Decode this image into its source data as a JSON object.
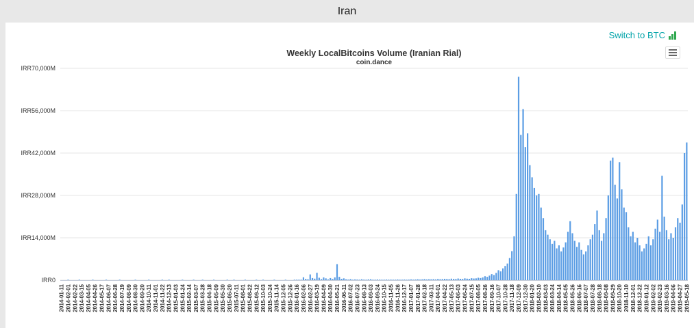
{
  "page": {
    "title": "Iran"
  },
  "toolbar": {
    "switch_label": "Switch to BTC"
  },
  "colors": {
    "bar": "#5b9de4",
    "link": "#00a3a9",
    "icon_green": "#2fa84f",
    "grid": "#e6e6e6",
    "axis": "#c6cedb",
    "label": "#333333"
  },
  "chart_data": {
    "type": "bar",
    "title": "Weekly LocalBitcoins Volume (Iranian Rial)",
    "subtitle": "coin.dance",
    "unit": "IRR millions",
    "x_start": "2014-01-11",
    "x_interval_days": 7,
    "ylim": [
      0,
      70000
    ],
    "yticks": [
      {
        "value": 0,
        "label": "IRR0"
      },
      {
        "value": 14000,
        "label": "IRR14,000M"
      },
      {
        "value": 28000,
        "label": "IRR28,000M"
      },
      {
        "value": 42000,
        "label": "IRR42,000M"
      },
      {
        "value": 56000,
        "label": "IRR56,000M"
      },
      {
        "value": 70000,
        "label": "IRR70,000M"
      }
    ],
    "x_tick_every": 3,
    "x_tick_labels": [
      "2014-01-11",
      "2014-02-01",
      "2014-02-22",
      "2014-03-15",
      "2014-04-05",
      "2014-04-26",
      "2014-05-17",
      "2014-06-07",
      "2014-06-28",
      "2014-07-19",
      "2014-08-09",
      "2014-08-30",
      "2014-09-20",
      "2014-10-11",
      "2014-11-01",
      "2014-11-22",
      "2014-12-13",
      "2015-01-03",
      "2015-01-24",
      "2015-02-14",
      "2015-03-07",
      "2015-03-28",
      "2015-04-18",
      "2015-05-09",
      "2015-05-30",
      "2015-06-20",
      "2015-07-11",
      "2015-08-01",
      "2015-08-22",
      "2015-09-12",
      "2015-10-03",
      "2015-10-24",
      "2015-11-14",
      "2015-12-05",
      "2015-12-26",
      "2016-01-16",
      "2016-02-06",
      "2016-02-27",
      "2016-03-19",
      "2016-04-09",
      "2016-04-30",
      "2016-05-21",
      "2016-06-11",
      "2016-07-02",
      "2016-07-23",
      "2016-08-13",
      "2016-09-03",
      "2016-09-24",
      "2016-10-15",
      "2016-11-05",
      "2016-11-26",
      "2016-12-17",
      "2017-01-07",
      "2017-01-28",
      "2017-02-18",
      "2017-03-11",
      "2017-04-01",
      "2017-04-22",
      "2017-05-13",
      "2017-06-03",
      "2017-06-24",
      "2017-07-15",
      "2017-08-05",
      "2017-08-26",
      "2017-09-16",
      "2017-10-07",
      "2017-10-28",
      "2017-11-18",
      "2017-12-09",
      "2017-12-30",
      "2018-01-20",
      "2018-02-10",
      "2018-03-03",
      "2018-03-24",
      "2018-04-14",
      "2018-05-05",
      "2018-05-26",
      "2018-06-16",
      "2018-07-07",
      "2018-07-28",
      "2018-08-18",
      "2018-09-08",
      "2018-09-29",
      "2018-10-20",
      "2018-11-10",
      "2018-12-01",
      "2018-12-22",
      "2019-01-12",
      "2019-02-02",
      "2019-02-23",
      "2019-03-16",
      "2019-04-06",
      "2019-04-27",
      "2019-05-18"
    ],
    "values": [
      0,
      0,
      0,
      5,
      0,
      0,
      0,
      0,
      12,
      0,
      0,
      0,
      0,
      0,
      20,
      0,
      0,
      0,
      0,
      0,
      35,
      0,
      0,
      0,
      0,
      0,
      8,
      0,
      0,
      0,
      0,
      0,
      0,
      25,
      0,
      0,
      0,
      0,
      0,
      15,
      0,
      0,
      0,
      0,
      0,
      30,
      0,
      0,
      10,
      0,
      0,
      0,
      0,
      0,
      18,
      0,
      0,
      0,
      0,
      40,
      0,
      0,
      0,
      55,
      0,
      0,
      0,
      0,
      25,
      0,
      0,
      0,
      0,
      0,
      60,
      0,
      0,
      15,
      0,
      0,
      0,
      0,
      45,
      0,
      0,
      0,
      0,
      70,
      0,
      0,
      20,
      0,
      0,
      0,
      0,
      50,
      0,
      0,
      0,
      0,
      80,
      0,
      0,
      0,
      60,
      120,
      80,
      150,
      950,
      420,
      300,
      1900,
      700,
      500,
      2450,
      800,
      350,
      900,
      600,
      250,
      700,
      400,
      900,
      5300,
      1100,
      450,
      600,
      300,
      200,
      350,
      150,
      250,
      200,
      100,
      300,
      180,
      120,
      250,
      300,
      150,
      100,
      220,
      180,
      90,
      150,
      200,
      120,
      180,
      100,
      160,
      220,
      140,
      110,
      200,
      150,
      180,
      250,
      180,
      220,
      300,
      200,
      260,
      350,
      240,
      300,
      280,
      320,
      250,
      400,
      300,
      350,
      450,
      380,
      320,
      500,
      420,
      380,
      550,
      450,
      400,
      600,
      500,
      450,
      650,
      550,
      600,
      800,
      700,
      900,
      1300,
      1100,
      1500,
      2000,
      1700,
      2400,
      3300,
      2900,
      3900,
      4700,
      5500,
      7300,
      9600,
      14500,
      28500,
      67200,
      48000,
      56500,
      44000,
      48500,
      38000,
      34000,
      30500,
      28000,
      28500,
      24000,
      20500,
      16500,
      15000,
      13500,
      12000,
      13000,
      10500,
      11500,
      9500,
      10800,
      12500,
      16000,
      19500,
      15500,
      13000,
      11000,
      12500,
      10000,
      8500,
      9500,
      11500,
      13500,
      15000,
      18500,
      23000,
      16500,
      13000,
      15500,
      20500,
      28000,
      39500,
      40500,
      31500,
      27000,
      39000,
      30000,
      24000,
      22500,
      17500,
      14500,
      16000,
      12500,
      14000,
      11500,
      9500,
      10500,
      12000,
      14500,
      11500,
      13500,
      17000,
      20000,
      16000,
      34500,
      21000,
      16500,
      13500,
      15500,
      14000,
      17500,
      20500,
      19000,
      25000,
      42000,
      45500
    ]
  }
}
